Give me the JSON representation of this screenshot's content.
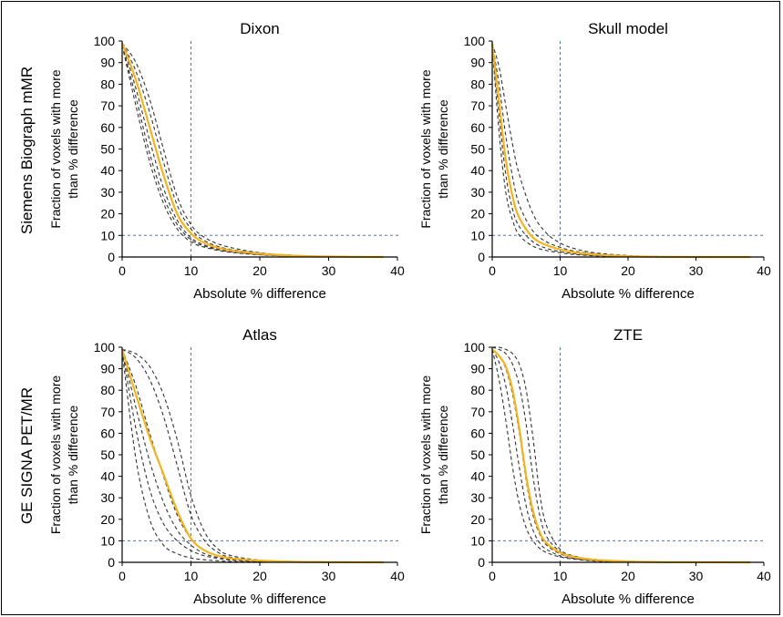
{
  "row_labels": [
    "Siemens Biograph mMR",
    "GE SIGNA PET/MR"
  ],
  "colors": {
    "mean_curve": "#F5B41E",
    "subject_curve": "#333333",
    "threshold_line": "#5B6FA8",
    "axes": "#000000"
  },
  "chart_data": [
    {
      "type": "line",
      "title": "Dixon",
      "xlabel": "Absolute % difference",
      "ylabel": "Fraction of voxels with more than % difference",
      "ylabel_lines": [
        "Fraction of voxels with more",
        "than % difference"
      ],
      "xlim": [
        0,
        40
      ],
      "ylim": [
        0,
        100
      ],
      "xticks": [
        0,
        10,
        20,
        30,
        40
      ],
      "yticks": [
        0,
        10,
        20,
        30,
        40,
        50,
        60,
        70,
        80,
        90,
        100
      ],
      "thresholds": {
        "x": 10,
        "y": 10
      },
      "x": [
        0,
        2,
        4,
        6,
        8,
        10,
        12,
        15,
        20,
        25,
        30,
        38
      ],
      "series": [
        {
          "role": "mean",
          "values": [
            99,
            82,
            60,
            38,
            20,
            11,
            6.5,
            3.5,
            1.5,
            0.6,
            0.2,
            0
          ]
        },
        {
          "role": "subject",
          "values": [
            99,
            90,
            73,
            50,
            28,
            15,
            9,
            5,
            2,
            0.8,
            0.3,
            0
          ]
        },
        {
          "role": "subject",
          "values": [
            99,
            86,
            67,
            44,
            24,
            13,
            7.5,
            4,
            1.8,
            0.7,
            0.2,
            0
          ]
        },
        {
          "role": "subject",
          "values": [
            99,
            78,
            54,
            32,
            17,
            9,
            5.5,
            3,
            1.2,
            0.5,
            0.2,
            0
          ]
        },
        {
          "role": "subject",
          "values": [
            98,
            74,
            48,
            28,
            15,
            8,
            5,
            2.8,
            1.1,
            0.4,
            0.1,
            0
          ]
        },
        {
          "role": "subject",
          "values": [
            98,
            70,
            44,
            25,
            13,
            7,
            4.5,
            2.5,
            1,
            0.4,
            0.1,
            0
          ]
        }
      ]
    },
    {
      "type": "line",
      "title": "Skull model",
      "xlabel": "Absolute % difference",
      "ylabel": "Fraction of voxels with more than % difference",
      "ylabel_lines": [
        "Fraction of voxels with more",
        "than % difference"
      ],
      "xlim": [
        0,
        40
      ],
      "ylim": [
        0,
        100
      ],
      "xticks": [
        0,
        10,
        20,
        30,
        40
      ],
      "yticks": [
        0,
        10,
        20,
        30,
        40,
        50,
        60,
        70,
        80,
        90,
        100
      ],
      "thresholds": {
        "x": 10,
        "y": 10
      },
      "x": [
        0,
        1,
        2,
        3,
        4,
        6,
        8,
        10,
        12,
        15,
        20,
        25,
        30,
        38
      ],
      "series": [
        {
          "role": "mean",
          "values": [
            99,
            72,
            45,
            28,
            18,
            9,
            5.5,
            3.5,
            2.2,
            1.2,
            0.4,
            0.1,
            0,
            0
          ]
        },
        {
          "role": "subject",
          "values": [
            99,
            88,
            70,
            52,
            38,
            20,
            11,
            6.5,
            4,
            2,
            0.7,
            0.2,
            0,
            0
          ]
        },
        {
          "role": "subject",
          "values": [
            99,
            80,
            56,
            37,
            24,
            12,
            7,
            4.5,
            2.8,
            1.5,
            0.5,
            0.1,
            0,
            0
          ]
        },
        {
          "role": "subject",
          "values": [
            99,
            66,
            38,
            22,
            14,
            7,
            4,
            2.5,
            1.6,
            0.8,
            0.3,
            0.1,
            0,
            0
          ]
        },
        {
          "role": "subject",
          "values": [
            98,
            58,
            30,
            17,
            10,
            5,
            3,
            2,
            1.2,
            0.6,
            0.2,
            0,
            0,
            0
          ]
        }
      ]
    },
    {
      "type": "line",
      "title": "Atlas",
      "xlabel": "Absolute % difference",
      "ylabel": "Fraction of voxels with more than % difference",
      "ylabel_lines": [
        "Fraction of voxels with more",
        "than % difference"
      ],
      "xlim": [
        0,
        40
      ],
      "ylim": [
        0,
        100
      ],
      "xticks": [
        0,
        10,
        20,
        30,
        40
      ],
      "yticks": [
        0,
        10,
        20,
        30,
        40,
        50,
        60,
        70,
        80,
        90,
        100
      ],
      "thresholds": {
        "x": 10,
        "y": 10
      },
      "x": [
        0,
        2,
        4,
        6,
        8,
        10,
        12,
        14,
        16,
        20,
        25,
        30,
        38
      ],
      "series": [
        {
          "role": "mean",
          "values": [
            99,
            78,
            58,
            41,
            24,
            11,
            5.5,
            3,
            1.8,
            0.8,
            0.3,
            0.1,
            0
          ]
        },
        {
          "role": "subject",
          "values": [
            99,
            97,
            91,
            78,
            57,
            31,
            14,
            6,
            3,
            1,
            0.3,
            0.1,
            0
          ]
        },
        {
          "role": "subject",
          "values": [
            99,
            95,
            85,
            68,
            45,
            22,
            10,
            4.5,
            2.2,
            0.8,
            0.3,
            0,
            0
          ]
        },
        {
          "role": "subject",
          "values": [
            99,
            82,
            60,
            40,
            22,
            11,
            5.5,
            3,
            1.5,
            0.6,
            0.2,
            0,
            0
          ]
        },
        {
          "role": "subject",
          "values": [
            99,
            72,
            47,
            28,
            15,
            8,
            4,
            2.2,
            1.3,
            0.5,
            0.2,
            0,
            0
          ]
        },
        {
          "role": "subject",
          "values": [
            99,
            62,
            34,
            18,
            10,
            5.5,
            3,
            1.8,
            1,
            0.4,
            0.1,
            0,
            0
          ]
        },
        {
          "role": "subject",
          "values": [
            98,
            48,
            20,
            8,
            4,
            2,
            1.2,
            0.7,
            0.4,
            0.2,
            0,
            0,
            0
          ]
        }
      ]
    },
    {
      "type": "line",
      "title": "ZTE",
      "xlabel": "Absolute % difference",
      "ylabel": "Fraction of voxels with more than % difference",
      "ylabel_lines": [
        "Fraction of voxels with more",
        "than % difference"
      ],
      "xlim": [
        0,
        40
      ],
      "ylim": [
        0,
        100
      ],
      "xticks": [
        0,
        10,
        20,
        30,
        40
      ],
      "yticks": [
        0,
        10,
        20,
        30,
        40,
        50,
        60,
        70,
        80,
        90,
        100
      ],
      "thresholds": {
        "x": 10,
        "y": 10
      },
      "x": [
        0,
        1,
        2,
        3,
        4,
        5,
        6,
        7,
        8,
        10,
        12,
        15,
        20,
        25,
        38
      ],
      "series": [
        {
          "role": "mean",
          "values": [
            99,
            96,
            91,
            80,
            62,
            40,
            24,
            14,
            9,
            4.5,
            2.5,
            1.2,
            0.4,
            0.1,
            0
          ]
        },
        {
          "role": "subject",
          "values": [
            100,
            100,
            99,
            97,
            92,
            80,
            58,
            32,
            17,
            6,
            3,
            1.4,
            0.5,
            0.1,
            0
          ]
        },
        {
          "role": "subject",
          "values": [
            100,
            99,
            97,
            92,
            82,
            64,
            40,
            22,
            12,
            5,
            2.7,
            1.2,
            0.4,
            0.1,
            0
          ]
        },
        {
          "role": "subject",
          "values": [
            99,
            96,
            90,
            78,
            60,
            38,
            22,
            13,
            8,
            4,
            2.2,
            1,
            0.3,
            0.1,
            0
          ]
        },
        {
          "role": "subject",
          "values": [
            99,
            93,
            82,
            64,
            44,
            26,
            15,
            9,
            6,
            3,
            1.8,
            0.8,
            0.3,
            0,
            0
          ]
        },
        {
          "role": "subject",
          "values": [
            99,
            85,
            66,
            44,
            27,
            16,
            10,
            6.5,
            4.5,
            2.5,
            1.5,
            0.6,
            0.2,
            0,
            0
          ]
        }
      ]
    }
  ]
}
